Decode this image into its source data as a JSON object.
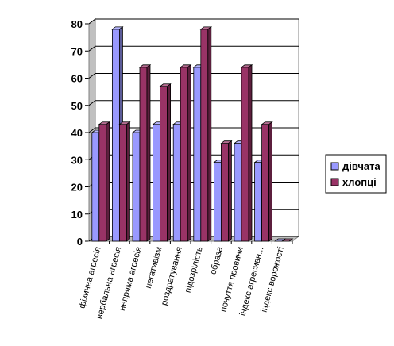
{
  "chart_data": {
    "type": "bar",
    "title": "",
    "xlabel": "",
    "ylabel": "",
    "ylim": [
      0,
      80
    ],
    "yticks": [
      0,
      10,
      20,
      30,
      40,
      50,
      60,
      70,
      80
    ],
    "grid": true,
    "legend_position": "right",
    "categories": [
      "фізична агресія",
      "вербальна агресія",
      "непряма агресія",
      "негативізм",
      "роздратування",
      "підозрілість",
      "образа",
      "почуття провини",
      "індекс агресивн...",
      "індекс ворожості"
    ],
    "series": [
      {
        "name": "дівчата",
        "color": "#9999ff",
        "values": [
          40,
          78,
          40,
          43,
          43,
          64,
          29,
          36,
          29,
          0
        ]
      },
      {
        "name": "хлопці",
        "color": "#993366",
        "values": [
          43,
          43,
          64,
          57,
          64,
          78,
          36,
          64,
          43,
          0
        ]
      }
    ]
  }
}
